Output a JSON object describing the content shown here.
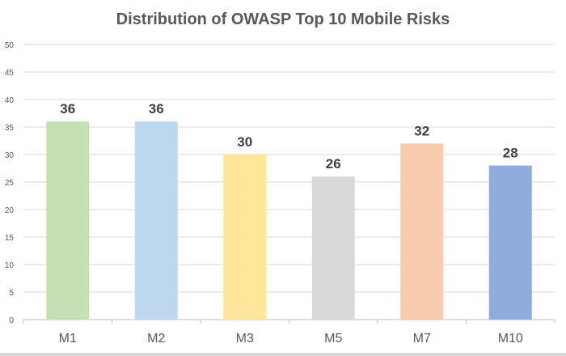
{
  "chart_data": {
    "type": "bar",
    "title": "Distribution of OWASP Top 10 Mobile Risks",
    "xlabel": "",
    "ylabel": "",
    "categories": [
      "M1",
      "M2",
      "M3",
      "M5",
      "M7",
      "M10"
    ],
    "values": [
      36,
      36,
      30,
      26,
      32,
      28
    ],
    "data_labels": [
      "36",
      "36",
      "30",
      "26",
      "32",
      "28"
    ],
    "colors": [
      "#c5e0b4",
      "#bdd7ee",
      "#ffe699",
      "#d9d9d9",
      "#f8cbad",
      "#8faadc"
    ],
    "ylim": [
      0,
      50
    ],
    "yticks": [
      0,
      5,
      10,
      15,
      20,
      25,
      30,
      35,
      40,
      45,
      50
    ],
    "ytick_labels": [
      "0",
      "5",
      "10",
      "15",
      "20",
      "25",
      "30",
      "35",
      "40",
      "45",
      "50"
    ],
    "grid": true,
    "legend": "none"
  }
}
